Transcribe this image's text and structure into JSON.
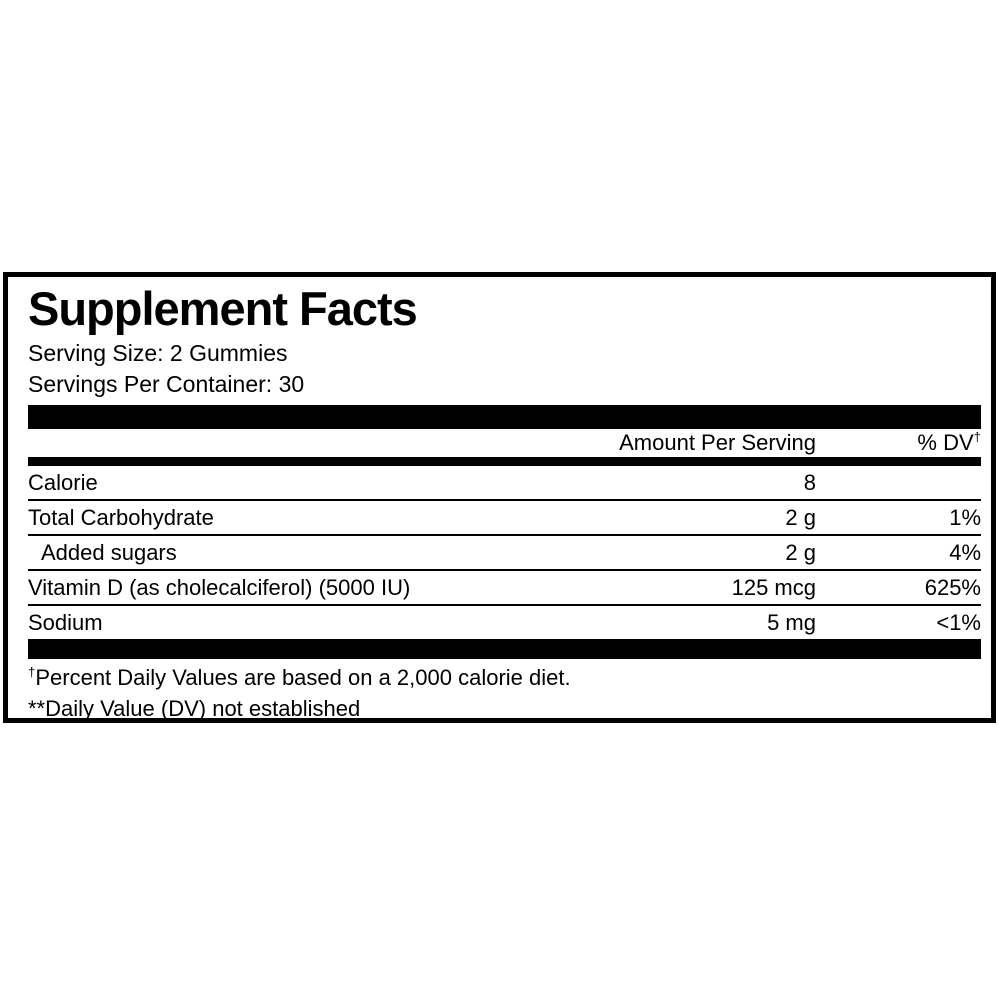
{
  "panel": {
    "title": "Supplement Facts",
    "serving_size": "Serving Size: 2 Gummies",
    "servings_per_container": "Servings Per Container: 30"
  },
  "table": {
    "columns": {
      "amount": "Amount Per Serving",
      "dv": "% DV",
      "dv_sup": "†"
    },
    "rows": [
      {
        "name": "Calorie",
        "amount": "8",
        "dv": "",
        "indent": false
      },
      {
        "name": "Total Carbohydrate",
        "amount": "2 g",
        "dv": "1%",
        "indent": false
      },
      {
        "name": "Added sugars",
        "amount": "2 g",
        "dv": "4%",
        "indent": true
      },
      {
        "name": "Vitamin D (as cholecalciferol) (5000 IU)",
        "amount": "125 mcg",
        "dv": "625%",
        "indent": false
      },
      {
        "name": "Sodium",
        "amount": "5 mg",
        "dv": "<1%",
        "indent": false
      }
    ]
  },
  "footnotes": [
    {
      "sup": "†",
      "text": "Percent Daily Values are based on a 2,000 calorie diet."
    },
    {
      "sup": "",
      "text": "**Daily Value (DV) not established"
    }
  ],
  "colors": {
    "text": "#000000",
    "background": "#ffffff",
    "border": "#000000"
  }
}
